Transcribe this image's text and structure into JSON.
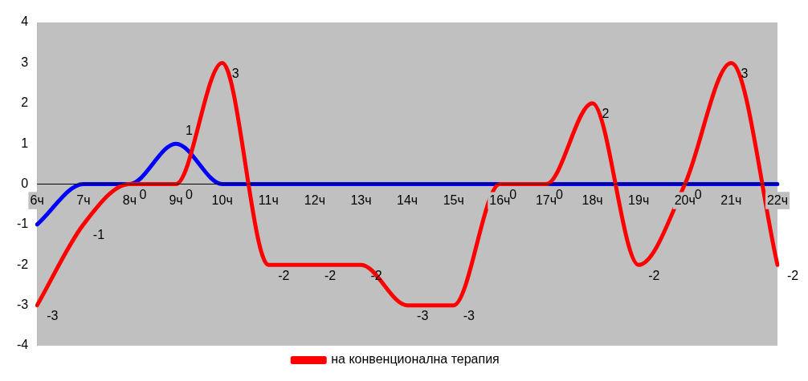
{
  "chart_data": {
    "type": "line",
    "categories": [
      "6ч",
      "7ч",
      "8ч",
      "9ч",
      "10ч",
      "11ч",
      "12ч",
      "13ч",
      "14ч",
      "15ч",
      "16ч",
      "17ч",
      "18ч",
      "19ч",
      "20ч",
      "21ч",
      "22ч"
    ],
    "series": [
      {
        "name": "на конвенционална терапия",
        "color": "#ff0000",
        "values": [
          -3,
          -1,
          0,
          0,
          3,
          -2,
          -2,
          -2,
          -3,
          -3,
          0,
          0,
          2,
          -2,
          0,
          3,
          -2
        ],
        "value_labels": [
          "-3",
          "-1",
          "0",
          "0",
          "3",
          "-2",
          "-2",
          "-2",
          "-3",
          "-3",
          "0",
          "0",
          "2",
          "-2",
          "0",
          "3",
          "-2"
        ]
      },
      {
        "color": "#0000ff",
        "values": [
          -1,
          0,
          0,
          1,
          0,
          0,
          0,
          0,
          0,
          0,
          0,
          0,
          0,
          0,
          0,
          0,
          0
        ],
        "value_labels": [
          null,
          null,
          null,
          "1",
          null,
          null,
          null,
          null,
          null,
          null,
          null,
          null,
          null,
          null,
          null,
          null,
          null
        ]
      }
    ],
    "ylim": [
      -4,
      4
    ],
    "yticks": [
      -4,
      -3,
      -2,
      -1,
      0,
      1,
      2,
      3,
      4
    ],
    "grid": false,
    "legend": "bottom",
    "marker": "none",
    "line_style": "solid"
  }
}
